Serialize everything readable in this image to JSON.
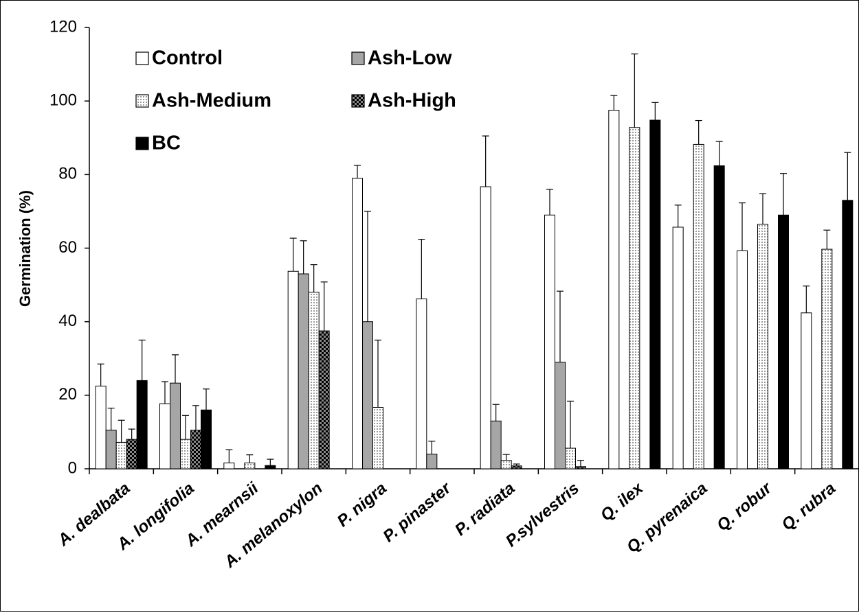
{
  "chart_data": {
    "type": "bar",
    "ylabel": "Germination (%)",
    "categories": [
      "A. dealbata",
      "A. longifolia",
      "A. mearnsii",
      "A. melanoxylon",
      "P. nigra",
      "P. pinaster",
      "P. radiata",
      "P.sylvestris",
      "Q. ilex",
      "Q. pyrenaica",
      "Q. robur",
      "Q. rubra"
    ],
    "series": [
      {
        "name": "Control",
        "color": "#ffffff",
        "pattern": "solid",
        "values": [
          22.5,
          17.7,
          1.6,
          53.7,
          79,
          46.2,
          76.7,
          69,
          97.5,
          65.7,
          59.3,
          42.4
        ],
        "errors": [
          6,
          6,
          3.6,
          9,
          3.5,
          16.2,
          13.8,
          7,
          4,
          6,
          13,
          7.3
        ]
      },
      {
        "name": "Ash-Low",
        "color": "#a6a6a6",
        "pattern": "solid",
        "values": [
          10.5,
          23.3,
          0,
          53,
          40,
          4,
          13,
          29,
          null,
          null,
          null,
          null
        ],
        "errors": [
          6,
          7.7,
          null,
          9,
          30,
          3.5,
          4.5,
          19.3,
          null,
          null,
          null,
          null
        ]
      },
      {
        "name": "Ash-Medium",
        "color": "#d9d9d9",
        "pattern": "dots",
        "values": [
          7.2,
          8,
          1.6,
          48,
          16.7,
          0,
          2.3,
          5.6,
          92.8,
          88.2,
          66.5,
          59.7
        ],
        "errors": [
          6,
          6.5,
          2.2,
          7.5,
          18.3,
          null,
          1.6,
          12.8,
          20,
          6.5,
          8.3,
          5.2
        ]
      },
      {
        "name": "Ash-High",
        "color": "#303030",
        "pattern": "checker",
        "values": [
          8,
          10.5,
          0,
          37.5,
          0,
          0,
          0.8,
          0.6,
          null,
          null,
          null,
          null
        ],
        "errors": [
          2.8,
          6.7,
          null,
          13.3,
          null,
          null,
          0.5,
          1.7,
          null,
          null,
          null,
          null
        ]
      },
      {
        "name": "BC",
        "color": "#000000",
        "pattern": "solid",
        "values": [
          24,
          16,
          0.9,
          0,
          0,
          0,
          0,
          0,
          94.8,
          82.4,
          69,
          73
        ],
        "errors": [
          11,
          5.7,
          1.7,
          null,
          null,
          null,
          null,
          null,
          4.8,
          6.6,
          11.3,
          13
        ]
      }
    ],
    "ylim": [
      0,
      120
    ],
    "yticks": [
      0,
      20,
      40,
      60,
      80,
      100,
      120
    ],
    "grid": false
  }
}
